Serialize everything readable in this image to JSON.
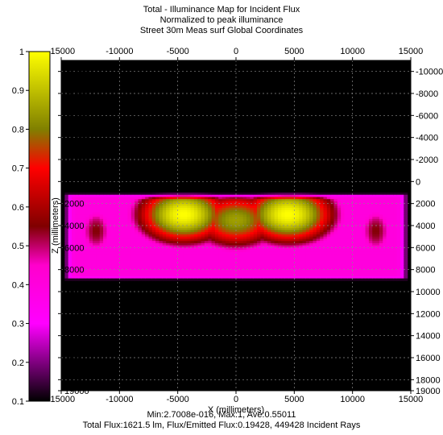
{
  "header": {
    "line1": "Total - Illuminance Map for Incident Flux",
    "line2": "Normalized to peak illuminance",
    "line3": "Street 30m Meas surf     Global Coordinates"
  },
  "footer": {
    "line1": "Min:2.7008e-016, Max:1, Ave:0.55011",
    "line2": "Total Flux:1621.5 lm, Flux/Emitted Flux:0.19428, 449428 Incident Rays"
  },
  "colors": {
    "plot_background": "#000000",
    "gradient": [
      {
        "v": 0.1,
        "c": "#000000"
      },
      {
        "v": 0.3,
        "c": "#ff00ff"
      },
      {
        "v": 0.45,
        "c": "#ff00cc"
      },
      {
        "v": 0.55,
        "c": "#800000"
      },
      {
        "v": 0.7,
        "c": "#ff0000"
      },
      {
        "v": 0.8,
        "c": "#808000"
      },
      {
        "v": 1.0,
        "c": "#ffff00"
      }
    ]
  },
  "chart_data": {
    "type": "heatmap",
    "xlabel": "X (millimeters)",
    "ylabel": "Z (millimeters)",
    "xlim": [
      -15000,
      15000
    ],
    "ylim": [
      -11000,
      19000
    ],
    "x_ticks": [
      -15000,
      -10000,
      -5000,
      0,
      5000,
      10000,
      15000
    ],
    "y_ticks": [
      -10000,
      -8000,
      -6000,
      -4000,
      -2000,
      0,
      2000,
      4000,
      6000,
      8000,
      10000,
      12000,
      14000,
      16000,
      18000,
      19000
    ],
    "colorbar": {
      "range": [
        0.1,
        1
      ],
      "ticks": [
        0.1,
        0.2,
        0.3,
        0.4,
        0.5,
        0.6,
        0.7,
        0.8,
        0.9,
        1
      ]
    },
    "grid": true,
    "region": {
      "x_range": [
        -15000,
        15000
      ],
      "z_range": [
        1000,
        9000
      ],
      "edge_level": 0.4,
      "hotspots": [
        {
          "x": -4500,
          "z": 3000,
          "peak": 1.0
        },
        {
          "x": 4500,
          "z": 3000,
          "peak": 1.0
        },
        {
          "x": 0,
          "z": 3500,
          "peak": 0.85
        },
        {
          "x": -12000,
          "z": 4500,
          "peak": 0.55
        },
        {
          "x": 12000,
          "z": 4500,
          "peak": 0.55
        }
      ]
    }
  }
}
